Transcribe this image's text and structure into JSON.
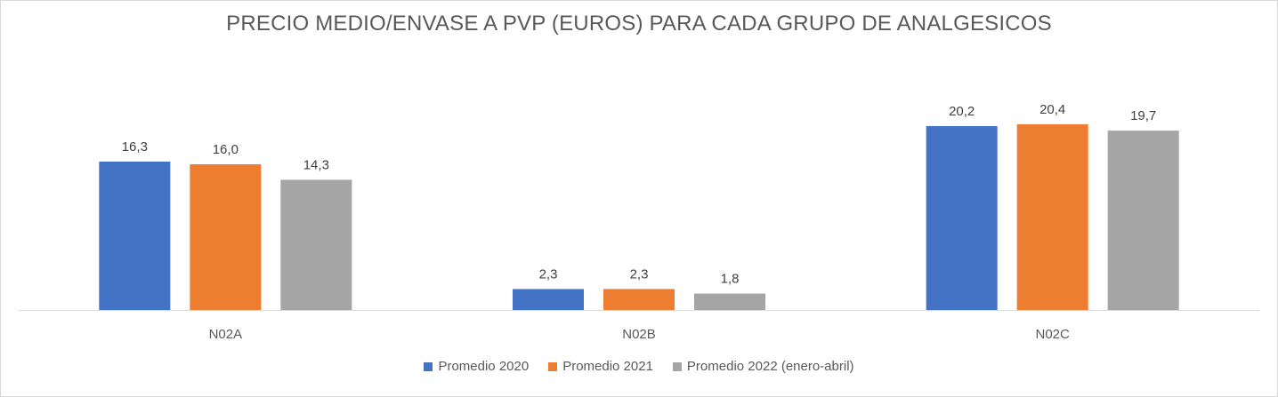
{
  "chart_data": {
    "type": "bar",
    "title": "PRECIO MEDIO/ENVASE A PVP (EUROS) PARA CADA GRUPO DE ANALGESICOS",
    "categories": [
      "N02A",
      "N02B",
      "N02C"
    ],
    "series": [
      {
        "name": "Promedio 2020",
        "color": "#4472c4",
        "values": [
          16.3,
          2.3,
          20.2
        ],
        "labels": [
          "16,3",
          "2,3",
          "20,2"
        ]
      },
      {
        "name": "Promedio 2021",
        "color": "#ed7d31",
        "values": [
          16.0,
          2.3,
          20.4
        ],
        "labels": [
          "16,0",
          "2,3",
          "20,4"
        ]
      },
      {
        "name": "Promedio 2022 (enero-abril)",
        "color": "#a5a5a5",
        "values": [
          14.3,
          1.8,
          19.7
        ],
        "labels": [
          "14,3",
          "1,8",
          "19,7"
        ]
      }
    ],
    "ylim": [
      0,
      24
    ],
    "grid": false,
    "legend_position": "bottom",
    "xlabel": "",
    "ylabel": ""
  }
}
